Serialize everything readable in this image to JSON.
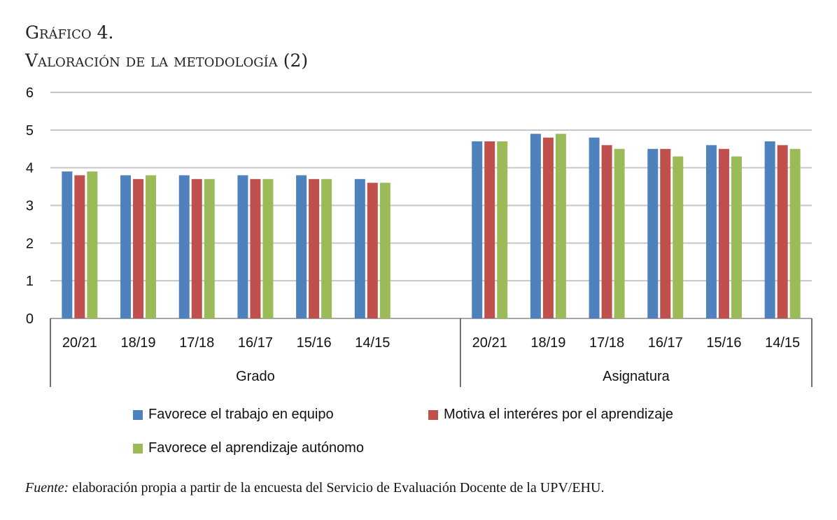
{
  "title_line1": "Gráfico 4.",
  "title_line2": "Valoración de la metodología (2)",
  "footer": {
    "label": "Fuente:",
    "text": " elaboración propia a partir de la encuesta del Servicio de Evaluación Docente de la UPV/EHU."
  },
  "chart_data": {
    "type": "bar",
    "ylim": [
      0,
      6
    ],
    "yticks": [
      0,
      1,
      2,
      3,
      4,
      5,
      6
    ],
    "grid": true,
    "legend_placement": "bottom",
    "groups": [
      {
        "name": "Grado",
        "categories": [
          "20/21",
          "18/19",
          "17/18",
          "16/17",
          "15/16",
          "14/15"
        ]
      },
      {
        "name": "Asignatura",
        "categories": [
          "20/21",
          "18/19",
          "17/18",
          "16/17",
          "15/16",
          "14/15"
        ]
      }
    ],
    "series": [
      {
        "name": "Favorece el trabajo en equipo",
        "color": "#4f81bd",
        "values": [
          3.9,
          3.8,
          3.8,
          3.8,
          3.8,
          3.7,
          4.7,
          4.9,
          4.8,
          4.5,
          4.6,
          4.7
        ]
      },
      {
        "name": "Motiva el interéres por el aprendizaje",
        "color": "#c0504d",
        "values": [
          3.8,
          3.7,
          3.7,
          3.7,
          3.7,
          3.6,
          4.7,
          4.8,
          4.6,
          4.5,
          4.5,
          4.6
        ]
      },
      {
        "name": "Favorece el aprendizaje autónomo",
        "color": "#9bbb59",
        "values": [
          3.9,
          3.8,
          3.7,
          3.7,
          3.7,
          3.6,
          4.7,
          4.9,
          4.5,
          4.3,
          4.3,
          4.5
        ]
      }
    ]
  }
}
